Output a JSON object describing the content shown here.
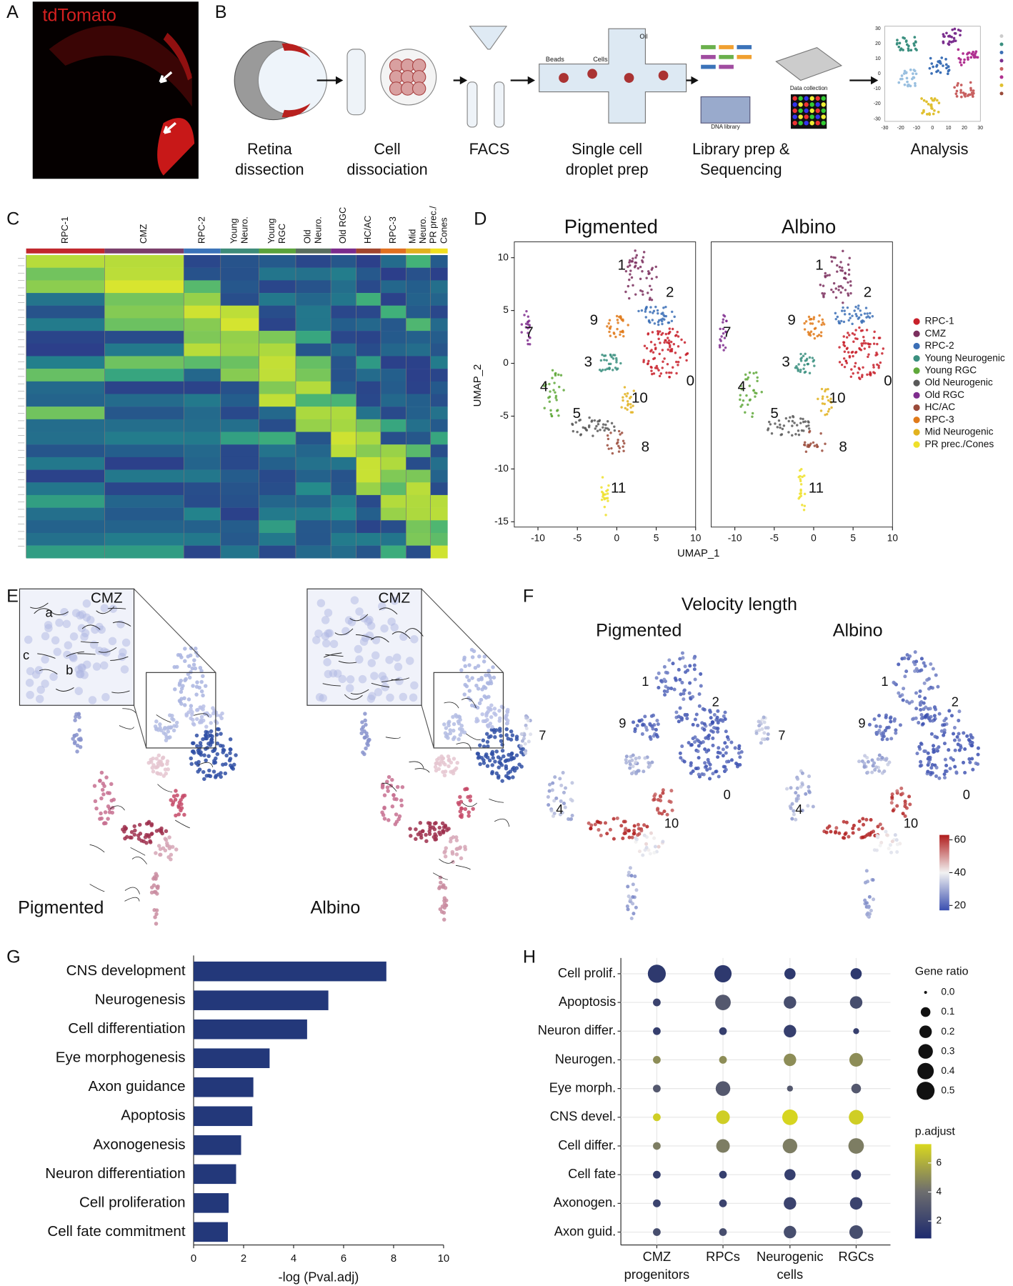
{
  "panels": {
    "A": {
      "letter": "A",
      "label": "tdTomato"
    },
    "B": {
      "letter": "B",
      "steps": [
        [
          "Retina",
          "dissection"
        ],
        [
          "Cell",
          "dissociation"
        ],
        [
          "FACS"
        ],
        [
          "Single cell",
          "droplet prep"
        ],
        [
          "Library prep &",
          "Sequencing"
        ],
        [
          "Analysis"
        ]
      ],
      "inset_labels": [
        "Beads",
        "Cells",
        "Oil",
        "DNA library",
        "Data collection"
      ],
      "analysis_xticks": [
        -30,
        -20,
        -10,
        0,
        10,
        20,
        30
      ],
      "analysis_yticks": [
        30,
        20,
        10,
        0,
        -10,
        -20,
        -30
      ]
    },
    "C": {
      "letter": "C",
      "clusters": [
        {
          "lines": [
            "RPC-1"
          ],
          "color": "#c1272d"
        },
        {
          "lines": [
            "CMZ"
          ],
          "color": "#7a3e6a"
        },
        {
          "lines": [
            "RPC-2"
          ],
          "color": "#3b73b9"
        },
        {
          "lines": [
            "Young",
            "Neuro."
          ],
          "color": "#3e8c7a"
        },
        {
          "lines": [
            "Young",
            "RGC"
          ],
          "color": "#5aa33c"
        },
        {
          "lines": [
            "Old",
            "Neuro."
          ],
          "color": "#5a6e60"
        },
        {
          "lines": [
            "Old RGC"
          ],
          "color": "#7b2c8c"
        },
        {
          "lines": [
            "HC/AC"
          ],
          "color": "#a0452f"
        },
        {
          "lines": [
            "RPC-3"
          ],
          "color": "#e07020"
        },
        {
          "lines": [
            "Mid",
            "Neuro."
          ],
          "color": "#e0b020"
        },
        {
          "lines": [
            "PR prec./",
            "Cones"
          ],
          "color": "#f0e020"
        }
      ]
    },
    "D": {
      "letter": "D",
      "titles": [
        "Pigmented",
        "Albino"
      ],
      "xlabel": "UMAP_1",
      "ylabel": "UMAP_2",
      "xlim": [
        -13,
        10
      ],
      "ylim": [
        -15.5,
        11.5
      ],
      "xticks": [
        -10,
        -5,
        0,
        5,
        10
      ],
      "yticks": [
        10,
        5,
        0,
        -5,
        -10,
        -15
      ],
      "cluster_labels": [
        "1",
        "2",
        "9",
        "7",
        "3",
        "0",
        "4",
        "10",
        "5",
        "8",
        "11"
      ],
      "legend": [
        {
          "name": "RPC-1",
          "color": "#c8202a"
        },
        {
          "name": "CMZ",
          "color": "#7b2f5e"
        },
        {
          "name": "RPC-2",
          "color": "#3b6fb6"
        },
        {
          "name": "Young Neurogenic",
          "color": "#3a8f7f"
        },
        {
          "name": "Young RGC",
          "color": "#5fa83a"
        },
        {
          "name": "Old Neurogenic",
          "color": "#595959"
        },
        {
          "name": "Old RGC",
          "color": "#7f2d8e"
        },
        {
          "name": "HC/AC",
          "color": "#9a4a3a"
        },
        {
          "name": "RPC-3",
          "color": "#e07a1a"
        },
        {
          "name": "Mid Neurogenic",
          "color": "#e2b21e"
        },
        {
          "name": "PR prec./Cones",
          "color": "#efe02a"
        }
      ]
    },
    "E": {
      "letter": "E",
      "inset_title": "CMZ",
      "inset_marks": [
        "a",
        "b",
        "c"
      ],
      "titles": [
        "Pigmented",
        "Albino"
      ]
    },
    "F": {
      "letter": "F",
      "title": "Velocity length",
      "titles": [
        "Pigmented",
        "Albino"
      ],
      "cluster_labels": [
        "1",
        "2",
        "9",
        "7",
        "4",
        "10",
        "0"
      ],
      "clim": [
        17,
        63
      ],
      "cticks": [
        20,
        40,
        60
      ],
      "colors": [
        "#3a4fb0",
        "#f2f2f2",
        "#b01c1c"
      ]
    },
    "G": {
      "letter": "G"
    },
    "H": {
      "letter": "H"
    }
  },
  "chart_data": [
    {
      "type": "barh",
      "categories": [
        "CNS development",
        "Neurogenesis",
        "Cell differentiation",
        "Eye morphogenesis",
        "Axon guidance",
        "Apoptosis",
        "Axonogenesis",
        "Neuron differentiation",
        "Cell proliferation",
        "Cell fate commitment"
      ],
      "values": [
        7.71,
        5.39,
        4.54,
        3.04,
        2.39,
        2.35,
        1.9,
        1.7,
        1.4,
        1.37
      ],
      "color": "#23387a",
      "xlim": [
        0,
        10
      ],
      "xticks": [
        0,
        2,
        4,
        6,
        8,
        10
      ],
      "xlabel": "-log (Pval.adj)"
    },
    {
      "type": "dot",
      "categories": [
        "Cell prolif.",
        "Apoptosis",
        "Neuron differ.",
        "Neurogen.",
        "Eye morph.",
        "CNS devel.",
        "Cell differ.",
        "Cell fate",
        "Axonogen.",
        "Axon guid."
      ],
      "series": [
        {
          "name": "CMZ progenitors",
          "gene_ratio": [
            0.5,
            0.05,
            0.05,
            0.05,
            0.05,
            0.05,
            0.05,
            0.05,
            0.05,
            0.05
          ],
          "p_adjust": [
            1.5,
            2,
            1.8,
            5,
            3,
            7,
            4.5,
            1.8,
            2,
            2.5
          ]
        },
        {
          "name": "RPCs",
          "gene_ratio": [
            0.45,
            0.35,
            0.05,
            0.05,
            0.3,
            0.25,
            0.25,
            0.05,
            0.05,
            0.05
          ],
          "p_adjust": [
            1.5,
            3,
            1.8,
            5,
            3,
            7,
            4.5,
            1.8,
            2,
            2.5
          ]
        },
        {
          "name": "Neurogenic cells",
          "gene_ratio": [
            0.15,
            0.2,
            0.2,
            0.2,
            0.02,
            0.35,
            0.3,
            0.15,
            0.2,
            0.2
          ],
          "p_adjust": [
            1.5,
            2.5,
            1.8,
            5,
            3,
            7.2,
            4.5,
            1.8,
            2,
            2.5
          ]
        },
        {
          "name": "RGCs",
          "gene_ratio": [
            0.15,
            0.2,
            0.02,
            0.25,
            0.1,
            0.3,
            0.35,
            0.1,
            0.2,
            0.25
          ],
          "p_adjust": [
            1.5,
            2.5,
            1.8,
            5,
            3,
            7,
            4.5,
            1.8,
            2,
            2.5
          ]
        }
      ],
      "size_legend": {
        "title": "Gene ratio",
        "values": [
          {
            "value": 0,
            "label": "0.0"
          },
          0.1,
          0.2,
          0.3,
          0.4,
          0.5
        ]
      },
      "color_legend": {
        "title": "p.adjust",
        "clim": [
          0.8,
          7.3
        ],
        "ticks": [
          2,
          4,
          6
        ],
        "colors": [
          "#1d2a6e",
          "#6e6e6e",
          "#d9d81e"
        ]
      },
      "grid": true
    }
  ]
}
